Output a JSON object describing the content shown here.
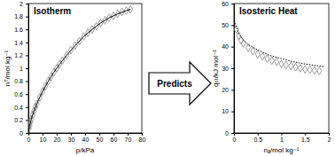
{
  "chart_data": [
    {
      "type": "scatter",
      "title": "Isotherm",
      "x_label": "p/kPa",
      "y_label": "nᵀ/mol kg⁻¹",
      "xlim": [
        0,
        80
      ],
      "xticks": [
        0,
        10,
        20,
        30,
        40,
        50,
        60,
        70,
        80
      ],
      "ylim": [
        0,
        2
      ],
      "yticks": [
        0,
        0.2,
        0.4,
        0.6,
        0.8,
        1,
        1.2,
        1.4,
        1.6,
        1.8,
        2
      ],
      "series": [
        {
          "type": "scatter",
          "marker": "diamond",
          "color": "#808080",
          "x": [
            0.5,
            1,
            1.5,
            2,
            3,
            4,
            5,
            6,
            8,
            10,
            12,
            14,
            16,
            18,
            20,
            22,
            24,
            27,
            30,
            33,
            36,
            39,
            42,
            45,
            48,
            51,
            54,
            57,
            60,
            63,
            66,
            69,
            72
          ],
          "values": [
            0.07,
            0.12,
            0.17,
            0.21,
            0.28,
            0.34,
            0.4,
            0.45,
            0.55,
            0.64,
            0.72,
            0.8,
            0.87,
            0.94,
            1.0,
            1.06,
            1.12,
            1.2,
            1.28,
            1.35,
            1.42,
            1.49,
            1.55,
            1.6,
            1.65,
            1.7,
            1.74,
            1.78,
            1.81,
            1.84,
            1.87,
            1.89,
            1.91
          ]
        },
        {
          "type": "line",
          "line_style": "solid",
          "color": "#000000",
          "x": [
            0,
            0.5,
            1,
            2,
            3,
            4,
            6,
            8,
            10,
            14,
            18,
            22,
            27,
            33,
            39,
            45,
            51,
            57,
            63,
            69,
            72
          ],
          "values": [
            0,
            0.07,
            0.12,
            0.21,
            0.28,
            0.34,
            0.45,
            0.55,
            0.64,
            0.8,
            0.94,
            1.06,
            1.2,
            1.35,
            1.49,
            1.6,
            1.7,
            1.78,
            1.84,
            1.89,
            1.91
          ]
        }
      ]
    },
    {
      "type": "scatter",
      "title": "Isosteric Heat",
      "x_label": "nₐ/mol kg⁻¹",
      "y_label": "qₛₜ/kJ mol⁻¹",
      "xlim": [
        0,
        2
      ],
      "xticks": [
        0,
        0.5,
        1,
        1.5,
        2
      ],
      "ylim": [
        0,
        60
      ],
      "yticks": [
        0,
        10,
        20,
        30,
        40,
        50,
        60
      ],
      "series": [
        {
          "type": "scatter",
          "marker": "diamond",
          "color": "#808080",
          "x": [
            0.05,
            0.1,
            0.15,
            0.2,
            0.3,
            0.4,
            0.5,
            0.6,
            0.7,
            0.8,
            0.9,
            1.0,
            1.1,
            1.2,
            1.3,
            1.4,
            1.5,
            1.6,
            1.7,
            1.8
          ],
          "values": [
            48,
            45,
            43,
            41.5,
            39.5,
            38,
            36.5,
            35.5,
            34.5,
            33.5,
            33,
            32,
            31.5,
            31,
            30.5,
            30,
            29.5,
            29.3,
            29,
            28.8
          ]
        },
        {
          "type": "line",
          "line_style": "dotted",
          "color": "#000000",
          "x": [
            0.02,
            0.05,
            0.1,
            0.2,
            0.3,
            0.5,
            0.75,
            1.0,
            1.25,
            1.5,
            1.75,
            1.9
          ],
          "values": [
            51,
            49,
            46,
            43,
            41,
            38.5,
            36,
            34.5,
            33,
            32,
            31.2,
            30.8
          ]
        }
      ]
    }
  ],
  "annotation": {
    "text": "Predicts"
  }
}
